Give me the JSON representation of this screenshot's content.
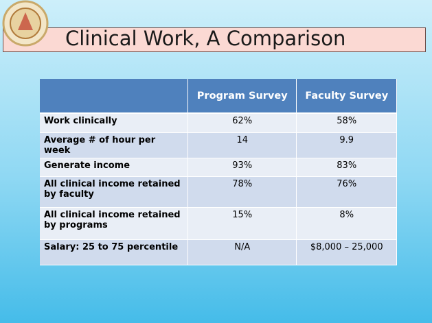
{
  "header": {
    "title": "Clinical Work, A Comparison"
  },
  "table": {
    "columns": [
      "Program Survey",
      "Faculty Survey"
    ],
    "rows": [
      [
        "Work clinically",
        "62%",
        "58%"
      ],
      [
        "Average # of hour per week",
        "14",
        "9.9"
      ],
      [
        "Generate income",
        "93%",
        "83%"
      ],
      [
        "All clinical income retained by faculty",
        "78%",
        "76%"
      ],
      [
        "All clinical income retained by programs",
        "15%",
        "8%"
      ],
      [
        "Salary: 25 to 75 percentile",
        "N/A",
        "$8,000 – 25,000"
      ]
    ]
  }
}
